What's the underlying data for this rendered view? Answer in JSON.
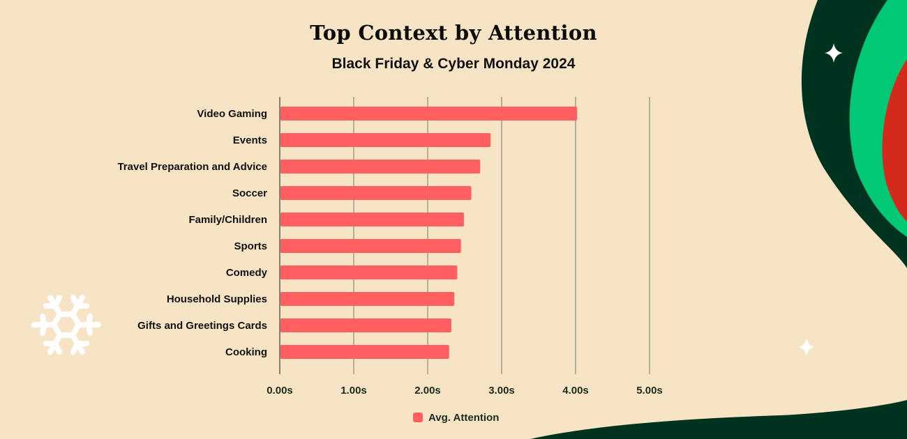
{
  "title": "Top Context by Attention",
  "subtitle": "Black Friday & Cyber Monday 2024",
  "colors": {
    "background": "#F7E4C5",
    "bar": "#FF5F61",
    "dark_green": "#00331F",
    "bright_green": "#00C875",
    "red": "#D42A1C",
    "text": "#111111"
  },
  "icons": [
    "snowflake-icon",
    "sparkle-icon"
  ],
  "chart_data": {
    "type": "bar",
    "orientation": "horizontal",
    "categories": [
      "Video Gaming",
      "Events",
      "Travel Preparation and Advice",
      "Soccer",
      "Family/Children",
      "Sports",
      "Comedy",
      "Household Supplies",
      "Gifts and Greetings Cards",
      "Cooking"
    ],
    "series": [
      {
        "name": "Avg. Attention",
        "values": [
          4.02,
          2.85,
          2.71,
          2.59,
          2.49,
          2.45,
          2.4,
          2.36,
          2.32,
          2.29
        ]
      }
    ],
    "xlim": [
      0,
      5
    ],
    "xticks": [
      "0.00s",
      "1.00s",
      "2.00s",
      "3.00s",
      "4.00s",
      "5.00s"
    ],
    "grid": true,
    "legend_position": "bottom"
  }
}
